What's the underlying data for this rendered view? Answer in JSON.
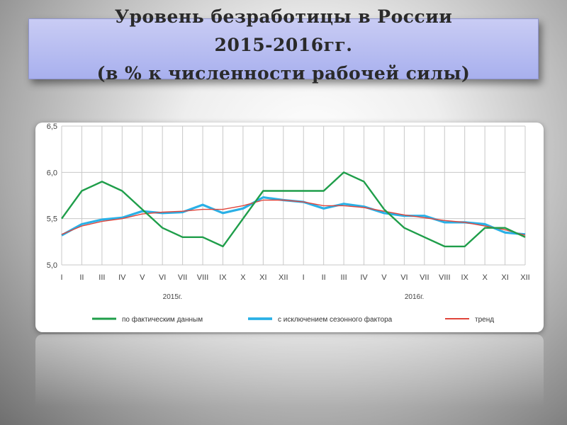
{
  "slide": {
    "title_lines": [
      "Уровень безработицы в России",
      "2015-2016гг.",
      "(в % к численности рабочей силы)"
    ]
  },
  "chart_data": {
    "type": "line",
    "categories": [
      "I",
      "II",
      "III",
      "IV",
      "V",
      "VI",
      "VII",
      "VIII",
      "IX",
      "X",
      "XI",
      "XII",
      "I",
      "II",
      "III",
      "IV",
      "V",
      "VI",
      "VII",
      "VIII",
      "IX",
      "X",
      "XI",
      "XII"
    ],
    "year_labels": [
      "2015г.",
      "2016г."
    ],
    "ylim": [
      5.0,
      6.5
    ],
    "yticks": [
      "5,0",
      "5,5",
      "6,0",
      "6,5"
    ],
    "grid": true,
    "legend_position": "bottom",
    "series": [
      {
        "name": "по фактическим данным",
        "color": "#1f9e4a",
        "values": [
          5.5,
          5.8,
          5.9,
          5.8,
          5.6,
          5.4,
          5.3,
          5.3,
          5.2,
          5.5,
          5.8,
          5.8,
          5.8,
          5.8,
          6.0,
          5.9,
          5.6,
          5.4,
          5.3,
          5.2,
          5.2,
          5.4,
          5.4,
          5.3
        ]
      },
      {
        "name": "с исключением сезонного фактора",
        "color": "#2ab0e6",
        "values": [
          5.32,
          5.44,
          5.49,
          5.51,
          5.58,
          5.56,
          5.57,
          5.65,
          5.56,
          5.61,
          5.73,
          5.7,
          5.68,
          5.61,
          5.66,
          5.63,
          5.56,
          5.53,
          5.53,
          5.46,
          5.46,
          5.44,
          5.35,
          5.33
        ]
      },
      {
        "name": "тренд",
        "color": "#e0443a",
        "values": [
          5.33,
          5.42,
          5.47,
          5.5,
          5.55,
          5.57,
          5.58,
          5.6,
          5.6,
          5.64,
          5.7,
          5.7,
          5.68,
          5.64,
          5.64,
          5.62,
          5.58,
          5.54,
          5.51,
          5.48,
          5.46,
          5.42,
          5.38,
          5.32
        ]
      }
    ]
  }
}
